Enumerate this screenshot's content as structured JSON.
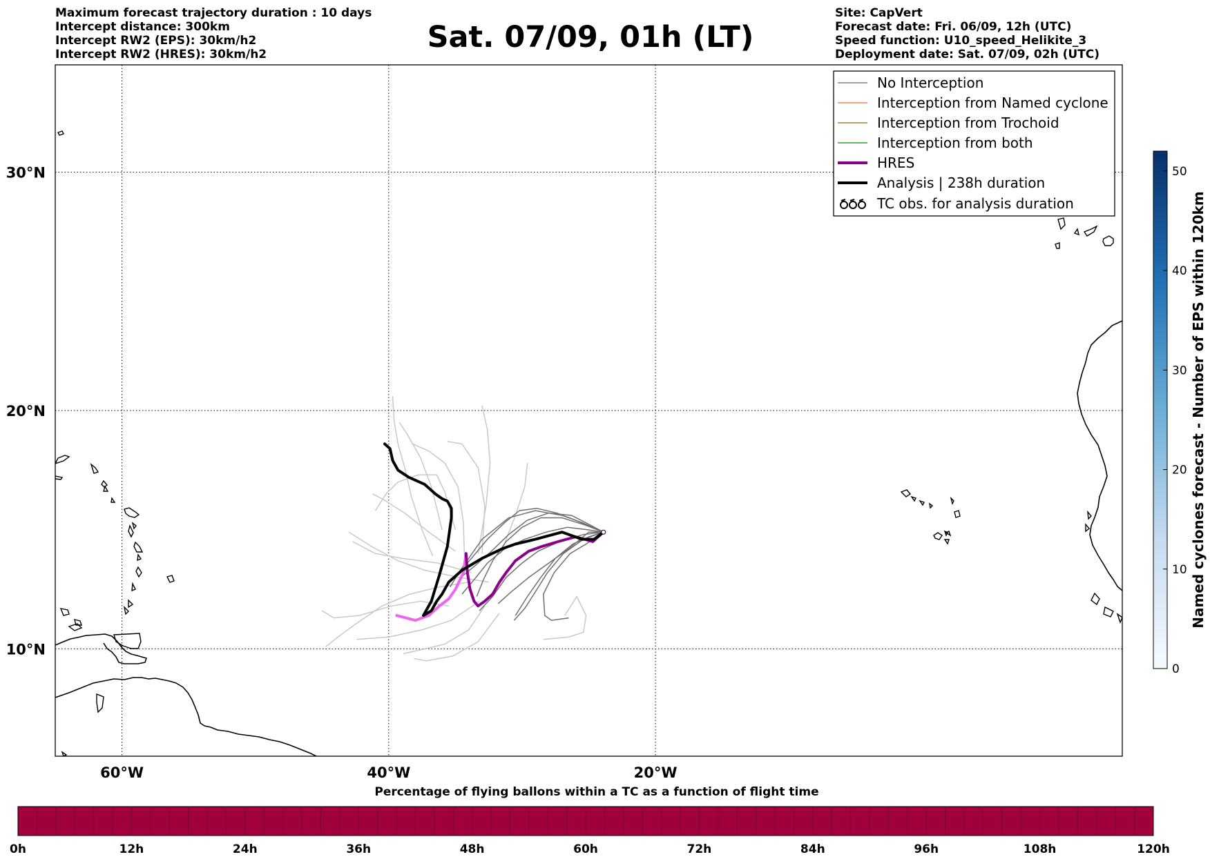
{
  "header_left": [
    "Maximum forecast trajectory duration : 10 days",
    "Intercept distance: 300km",
    "Intercept RW2 (EPS):  30km/h2",
    "Intercept RW2 (HRES): 30km/h2"
  ],
  "title": "Sat. 07/09, 01h (LT)",
  "header_right": [
    "Site: CapVert",
    "Forecast date: Fri. 06/09, 12h (UTC)",
    "Speed function: U10_speed_Helikite_3",
    "Deployment date: Sat. 07/09, 02h (UTC)"
  ],
  "map": {
    "lon_range": [
      -65,
      15
    ],
    "lat_range": [
      5.5,
      34.5
    ],
    "lon_ticks": [
      {
        "lon": -60,
        "label": "60°W"
      },
      {
        "lon": -40,
        "label": "40°W"
      },
      {
        "lon": -20,
        "label": "20°W"
      }
    ],
    "lat_ticks": [
      {
        "lat": 30,
        "label": "30°N"
      },
      {
        "lat": 20,
        "label": "20°N"
      },
      {
        "lat": 10,
        "label": "10°N"
      }
    ]
  },
  "legend": [
    {
      "label": "No Interception",
      "color": "#808080",
      "style": "thin"
    },
    {
      "label": "Interception from Named cyclone",
      "color": "#ff7f50",
      "style": "thin"
    },
    {
      "label": "Interception from Trochoid",
      "color": "#9b8a3a",
      "style": "thin"
    },
    {
      "label": "Interception from both",
      "color": "#2ca02c",
      "style": "thin"
    },
    {
      "label": "HRES",
      "color": "#8b008b",
      "style": "thick"
    },
    {
      "label": "Analysis | 238h duration",
      "color": "#000000",
      "style": "thick"
    },
    {
      "label": "TC obs. for analysis duration",
      "color": "#000000",
      "style": "symbol"
    }
  ],
  "colorbar": {
    "label": "Named cyclones forecast - Number of EPS within 120km",
    "min": 0,
    "max": 52,
    "ticks": [
      0,
      10,
      20,
      30,
      40,
      50
    ],
    "tick_labels": [
      "0",
      "10",
      "20",
      "30",
      "40",
      "50"
    ],
    "color_low": "#f7fbff",
    "color_high": "#08306b"
  },
  "bottom_bar": {
    "title": "Percentage of flying ballons within a TC as a function of flight time",
    "color": "#a0003c",
    "tick_labels": [
      "0h",
      "12h",
      "24h",
      "36h",
      "48h",
      "60h",
      "72h",
      "84h",
      "96h",
      "108h",
      "120h"
    ]
  },
  "tracks": {
    "start": [
      -23.9,
      14.9
    ],
    "analysis": [
      [
        -23.9,
        14.9
      ],
      [
        -24.6,
        14.6
      ],
      [
        -25.5,
        14.6
      ],
      [
        -27,
        14.9
      ],
      [
        -29,
        14.6
      ],
      [
        -30.5,
        14.4
      ],
      [
        -31.5,
        14.2
      ],
      [
        -33,
        13.8
      ],
      [
        -34.5,
        13.3
      ],
      [
        -35.5,
        12.8
      ],
      [
        -36,
        12.3
      ],
      [
        -36.4,
        12
      ],
      [
        -36.8,
        11.6
      ],
      [
        -37.4,
        11.4
      ],
      [
        -36.8,
        12
      ],
      [
        -36.2,
        13.1
      ],
      [
        -35.6,
        14.3
      ],
      [
        -35.3,
        15.5
      ],
      [
        -35.3,
        15.9
      ],
      [
        -35.6,
        16.2
      ],
      [
        -36,
        16.3
      ],
      [
        -36.5,
        16.5
      ],
      [
        -37.3,
        16.9
      ],
      [
        -38.5,
        17.2
      ],
      [
        -39.3,
        17.5
      ],
      [
        -39.7,
        17.9
      ],
      [
        -39.9,
        18.4
      ],
      [
        -40.3,
        18.6
      ]
    ],
    "hres": [
      [
        -23.9,
        14.9
      ],
      [
        -24.7,
        14.5
      ],
      [
        -25.3,
        14.6
      ],
      [
        -26,
        14.7
      ],
      [
        -27.3,
        14.5
      ],
      [
        -28.5,
        14.3
      ],
      [
        -29.5,
        14.1
      ],
      [
        -30.5,
        13.7
      ],
      [
        -31.2,
        13.2
      ],
      [
        -31.7,
        12.8
      ],
      [
        -32.2,
        12.3
      ],
      [
        -32.8,
        12
      ],
      [
        -33.3,
        11.8
      ],
      [
        -33.6,
        12
      ],
      [
        -33.9,
        12.5
      ],
      [
        -34.1,
        13.2
      ],
      [
        -34.2,
        14
      ],
      [
        -34.4,
        13.2
      ],
      [
        -35,
        12.5
      ],
      [
        -35.5,
        12.1
      ],
      [
        -36.2,
        11.8
      ],
      [
        -37,
        11.4
      ],
      [
        -38,
        11.2
      ],
      [
        -39.4,
        11.4
      ]
    ],
    "hres_pink_from": 16,
    "eps_dark": [
      [
        [
          -23.9,
          14.9
        ],
        [
          -25.5,
          15.3
        ],
        [
          -27,
          15.6
        ],
        [
          -29,
          15.8
        ],
        [
          -31,
          15.5
        ],
        [
          -33,
          14.6
        ],
        [
          -34.5,
          13.4
        ],
        [
          -35.4,
          12.6
        ]
      ],
      [
        [
          -23.9,
          14.9
        ],
        [
          -25,
          14.9
        ],
        [
          -26.5,
          14.2
        ],
        [
          -28,
          13.6
        ],
        [
          -29.5,
          13
        ],
        [
          -30.8,
          12.4
        ],
        [
          -31.8,
          11.9
        ]
      ],
      [
        [
          -23.9,
          14.9
        ],
        [
          -25.2,
          14.4
        ],
        [
          -26.4,
          14
        ],
        [
          -27.6,
          13.2
        ],
        [
          -28.4,
          12.3
        ],
        [
          -28.3,
          11.4
        ],
        [
          -27.8,
          11.2
        ],
        [
          -26.5,
          11.3
        ]
      ],
      [
        [
          -23.9,
          14.9
        ],
        [
          -24.8,
          15.1
        ],
        [
          -26,
          15.4
        ],
        [
          -27.4,
          15.7
        ],
        [
          -28.9,
          15.9
        ],
        [
          -30.2,
          15.8
        ],
        [
          -31.3,
          15.3
        ],
        [
          -32.6,
          14.6
        ],
        [
          -33.8,
          13.8
        ],
        [
          -34.9,
          13.1
        ]
      ],
      [
        [
          -23.9,
          14.9
        ],
        [
          -25.4,
          14.8
        ],
        [
          -27.2,
          14.5
        ],
        [
          -28.8,
          14.1
        ],
        [
          -30,
          13.6
        ],
        [
          -31.2,
          13
        ],
        [
          -32.2,
          12.2
        ],
        [
          -33.2,
          11.6
        ]
      ],
      [
        [
          -23.9,
          14.9
        ],
        [
          -25,
          14.7
        ],
        [
          -26.2,
          14.4
        ],
        [
          -27.5,
          13.8
        ],
        [
          -28.6,
          13
        ],
        [
          -29.6,
          12.2
        ],
        [
          -30.5,
          11.4
        ]
      ],
      [
        [
          -23.9,
          14.9
        ],
        [
          -25.1,
          15
        ],
        [
          -26.6,
          15.1
        ],
        [
          -28.2,
          14.9
        ],
        [
          -29.8,
          14.6
        ],
        [
          -31.3,
          14.2
        ],
        [
          -32.6,
          13.6
        ],
        [
          -33.6,
          12.9
        ],
        [
          -34.5,
          12.3
        ]
      ],
      [
        [
          -23.9,
          14.9
        ],
        [
          -25.3,
          15.2
        ],
        [
          -27,
          15.5
        ],
        [
          -28.6,
          15.5
        ],
        [
          -30,
          15.1
        ],
        [
          -31.2,
          14.5
        ],
        [
          -32.2,
          13.7
        ],
        [
          -32.9,
          12.9
        ],
        [
          -33.4,
          12.2
        ]
      ],
      [
        [
          -23.9,
          14.9
        ],
        [
          -25.4,
          14.6
        ],
        [
          -26.9,
          14
        ],
        [
          -28.1,
          13.2
        ],
        [
          -29,
          12.4
        ],
        [
          -29.8,
          11.7
        ],
        [
          -30.6,
          11.2
        ]
      ],
      [
        [
          -23.9,
          14.9
        ],
        [
          -24.9,
          15.2
        ],
        [
          -26.3,
          15.6
        ],
        [
          -28,
          15.7
        ],
        [
          -29.6,
          15.4
        ],
        [
          -31,
          14.8
        ],
        [
          -32.3,
          14.1
        ],
        [
          -33.5,
          13.5
        ],
        [
          -34.6,
          13
        ]
      ]
    ],
    "eps_light": [
      [
        [
          -36.7,
          13.9
        ],
        [
          -37.5,
          15
        ],
        [
          -38.3,
          16.4
        ],
        [
          -38.8,
          17.6
        ],
        [
          -39.3,
          18.6
        ],
        [
          -39.6,
          19.6
        ],
        [
          -39.7,
          20.6
        ]
      ],
      [
        [
          -36,
          15
        ],
        [
          -36.8,
          16.8
        ],
        [
          -37.6,
          18
        ],
        [
          -38.6,
          19
        ],
        [
          -39.2,
          19.5
        ]
      ],
      [
        [
          -35,
          15
        ],
        [
          -35.8,
          16.6
        ],
        [
          -36.4,
          17.3
        ],
        [
          -37.8,
          17.3
        ],
        [
          -39.3,
          17
        ],
        [
          -40.2,
          16.5
        ],
        [
          -41,
          15.8
        ]
      ],
      [
        [
          -34.3,
          13.5
        ],
        [
          -34.4,
          15.3
        ],
        [
          -34.8,
          16.8
        ],
        [
          -35.8,
          17.8
        ],
        [
          -37,
          18.3
        ],
        [
          -38.2,
          18.6
        ]
      ],
      [
        [
          -33,
          14
        ],
        [
          -32.8,
          16
        ],
        [
          -33.3,
          17.6
        ],
        [
          -34.5,
          18.6
        ],
        [
          -35.6,
          18.7
        ]
      ],
      [
        [
          -33.3,
          14
        ],
        [
          -32.7,
          16
        ],
        [
          -32.4,
          17.8
        ],
        [
          -32.6,
          19.2
        ],
        [
          -33,
          20.2
        ]
      ],
      [
        [
          -31.6,
          14
        ],
        [
          -30.5,
          15.6
        ],
        [
          -29.8,
          16.8
        ],
        [
          -29.6,
          17.8
        ]
      ],
      [
        [
          -32.5,
          12.8
        ],
        [
          -34.7,
          13
        ],
        [
          -37.3,
          13.3
        ],
        [
          -39.3,
          13.7
        ],
        [
          -41.3,
          14.3
        ],
        [
          -43,
          14.9
        ]
      ],
      [
        [
          -35.5,
          11.8
        ],
        [
          -37.6,
          12
        ],
        [
          -39.8,
          11.8
        ],
        [
          -42.2,
          11.4
        ],
        [
          -44.1,
          11.3
        ],
        [
          -45,
          11.6
        ]
      ],
      [
        [
          -33.2,
          12
        ],
        [
          -35.3,
          11.2
        ],
        [
          -37.5,
          10.8
        ],
        [
          -40,
          10.5
        ],
        [
          -42.4,
          10.4
        ]
      ],
      [
        [
          -32.8,
          11.8
        ],
        [
          -34,
          10.8
        ],
        [
          -35.8,
          10.2
        ],
        [
          -38.1,
          9.9
        ],
        [
          -38.9,
          9.8
        ]
      ],
      [
        [
          -33.8,
          13.2
        ],
        [
          -36.3,
          13.6
        ],
        [
          -39,
          13.8
        ],
        [
          -41,
          14
        ],
        [
          -42.7,
          14.5
        ]
      ],
      [
        [
          -31.7,
          11.5
        ],
        [
          -33.3,
          10.3
        ],
        [
          -35.2,
          9.7
        ],
        [
          -37.2,
          9.5
        ],
        [
          -38.1,
          9.6
        ]
      ],
      [
        [
          -34,
          12.8
        ],
        [
          -36.2,
          12.6
        ],
        [
          -38.4,
          12.3
        ],
        [
          -40.5,
          11.8
        ],
        [
          -42.6,
          11
        ],
        [
          -43.8,
          10.5
        ],
        [
          -44.7,
          10.1
        ]
      ],
      [
        [
          -26.8,
          11.4
        ],
        [
          -25.9,
          12.2
        ],
        [
          -25.2,
          11.4
        ],
        [
          -25.4,
          10.7
        ],
        [
          -26.5,
          10.5
        ],
        [
          -28.4,
          10.4
        ]
      ],
      [
        [
          -35,
          14.1
        ],
        [
          -37,
          14.9
        ],
        [
          -38.8,
          15.7
        ],
        [
          -40.5,
          16.3
        ],
        [
          -41.2,
          16.5
        ]
      ]
    ]
  }
}
